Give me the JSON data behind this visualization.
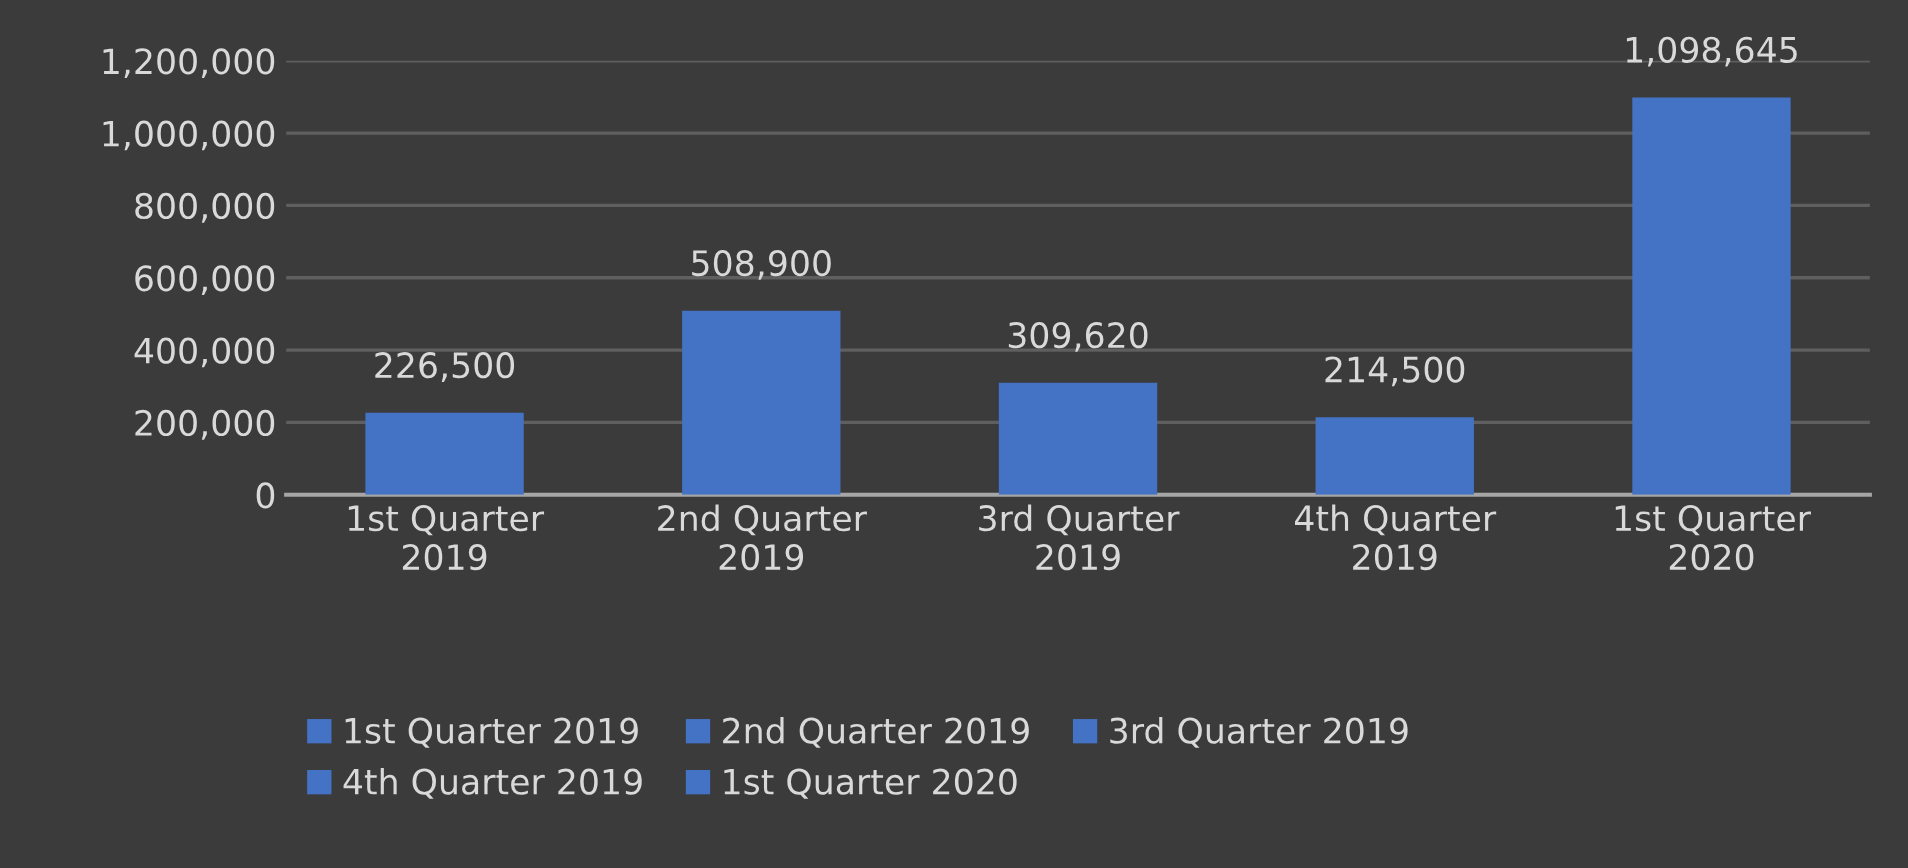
{
  "chart_data": {
    "type": "bar",
    "categories": [
      "1st Quarter 2019",
      "2nd Quarter 2019",
      "3rd Quarter 2019",
      "4th Quarter 2019",
      "1st Quarter 2020"
    ],
    "stacked": true,
    "series": [
      {
        "name": "1st Quarter 2019",
        "color": "#4472c4",
        "values": [
          226500,
          null,
          null,
          null,
          null
        ],
        "value_labels": [
          "226,500",
          null,
          null,
          null,
          null
        ]
      },
      {
        "name": "2nd Quarter 2019",
        "color": "#4472c4",
        "values": [
          null,
          508900,
          null,
          null,
          null
        ],
        "value_labels": [
          null,
          "508,900",
          null,
          null,
          null
        ]
      },
      {
        "name": "3rd Quarter 2019",
        "color": "#4472c4",
        "values": [
          null,
          null,
          309620,
          null,
          null
        ],
        "value_labels": [
          null,
          null,
          "309,620",
          null,
          null
        ]
      },
      {
        "name": "4th Quarter 2019",
        "color": "#4472c4",
        "values": [
          null,
          null,
          null,
          214500,
          null
        ],
        "value_labels": [
          null,
          null,
          null,
          "214,500",
          null
        ]
      },
      {
        "name": "1st Quarter 2020",
        "color": "#4472c4",
        "values": [
          null,
          null,
          null,
          null,
          1098645
        ],
        "value_labels": [
          null,
          null,
          null,
          null,
          "1,098,645"
        ]
      }
    ],
    "ylim": [
      0,
      1200000
    ],
    "yticks": [
      {
        "value": 0,
        "label": "0"
      },
      {
        "value": 200000,
        "label": "200,000"
      },
      {
        "value": 400000,
        "label": "400,000"
      },
      {
        "value": 600000,
        "label": "600,000"
      },
      {
        "value": 800000,
        "label": "800,000"
      },
      {
        "value": 1000000,
        "label": "1,000,000"
      },
      {
        "value": 1200000,
        "label": "1,200,000"
      }
    ],
    "grid": "y",
    "legend": "bottom"
  }
}
